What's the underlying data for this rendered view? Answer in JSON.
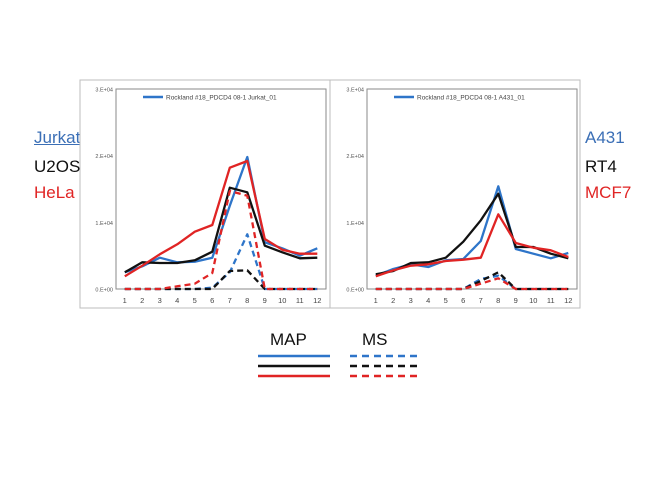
{
  "cell_lines_left": [
    {
      "name": "Jurkat",
      "color": "#3B6FB6",
      "underline": true
    },
    {
      "name": "U2OS",
      "color": "#111111",
      "underline": false
    },
    {
      "name": "HeLa",
      "color": "#E02424",
      "underline": false
    }
  ],
  "cell_lines_right": [
    {
      "name": "A431",
      "color": "#3B6FB6"
    },
    {
      "name": "RT4",
      "color": "#111111"
    },
    {
      "name": "MCF7",
      "color": "#E02424"
    }
  ],
  "legend": {
    "map_label": "MAP",
    "ms_label": "MS"
  },
  "colors": {
    "blue": "#2E75C9",
    "black": "#111111",
    "red": "#E02424"
  },
  "chart_data": [
    {
      "type": "line",
      "legend_entry": "Rockland #18_PDCD4 08-1 Jurkat_01",
      "legend_placement": "top",
      "x": [
        1,
        2,
        3,
        4,
        5,
        6,
        7,
        8,
        9,
        10,
        11,
        12
      ],
      "ylim": [
        0,
        30000
      ],
      "ytick_labels": [
        "0.E+00",
        "1.E+04",
        "2.E+04",
        "3.E+04"
      ],
      "ytick_values": [
        0,
        10000,
        20000,
        30000
      ],
      "series": [
        {
          "name": "Jurkat MAP",
          "color": "blue",
          "dashed": false,
          "values": [
            2500,
            3400,
            4700,
            4000,
            4100,
            4700,
            12500,
            19800,
            7000,
            6100,
            5000,
            6100
          ]
        },
        {
          "name": "U2OS MAP",
          "color": "black",
          "dashed": false,
          "values": [
            2500,
            4000,
            3900,
            3900,
            4300,
            5600,
            15200,
            14500,
            6500,
            5500,
            4600,
            4700
          ]
        },
        {
          "name": "HeLa MAP",
          "color": "red",
          "dashed": false,
          "values": [
            1900,
            3500,
            5200,
            6700,
            8600,
            9600,
            18200,
            19200,
            7500,
            5900,
            5300,
            5300
          ]
        },
        {
          "name": "Jurkat MS",
          "color": "blue",
          "dashed": true,
          "values": [
            0,
            0,
            0,
            0,
            0,
            200,
            2500,
            8200,
            0,
            0,
            0,
            0
          ]
        },
        {
          "name": "U2OS MS",
          "color": "black",
          "dashed": true,
          "values": [
            0,
            0,
            0,
            0,
            0,
            0,
            2700,
            2800,
            0,
            0,
            0,
            0
          ]
        },
        {
          "name": "HeLa MS",
          "color": "red",
          "dashed": true,
          "values": [
            0,
            0,
            0,
            400,
            800,
            2400,
            14700,
            14000,
            0,
            0,
            0,
            0
          ]
        }
      ]
    },
    {
      "type": "line",
      "legend_entry": "Rockland #18_PDCD4 08-1 A431_01",
      "legend_placement": "top",
      "x": [
        1,
        2,
        3,
        4,
        5,
        6,
        7,
        8,
        9,
        10,
        11,
        12
      ],
      "ylim": [
        0,
        30000
      ],
      "ytick_labels": [
        "0.E+00",
        "1.E+04",
        "2.E+04",
        "3.E+04"
      ],
      "ytick_values": [
        0,
        10000,
        20000,
        30000
      ],
      "series": [
        {
          "name": "A431 MAP",
          "color": "blue",
          "dashed": false,
          "values": [
            2000,
            3000,
            3700,
            3300,
            4300,
            4500,
            7200,
            15400,
            6000,
            5300,
            4600,
            5400
          ]
        },
        {
          "name": "RT4 MAP",
          "color": "black",
          "dashed": false,
          "values": [
            2200,
            2700,
            3900,
            4000,
            4700,
            7100,
            10300,
            14300,
            6300,
            6300,
            5300,
            4600
          ]
        },
        {
          "name": "MCF7 MAP",
          "color": "red",
          "dashed": false,
          "values": [
            1900,
            2800,
            3500,
            3700,
            4200,
            4400,
            4700,
            11200,
            6900,
            6200,
            5800,
            4800
          ]
        },
        {
          "name": "A431 MS",
          "color": "blue",
          "dashed": true,
          "values": [
            0,
            0,
            0,
            0,
            0,
            0,
            1500,
            2000,
            0,
            0,
            0,
            0
          ]
        },
        {
          "name": "RT4 MS",
          "color": "black",
          "dashed": true,
          "values": [
            0,
            0,
            0,
            0,
            0,
            0,
            1200,
            2500,
            0,
            0,
            0,
            0
          ]
        },
        {
          "name": "MCF7 MS",
          "color": "red",
          "dashed": true,
          "values": [
            0,
            0,
            0,
            0,
            0,
            0,
            800,
            1600,
            0,
            0,
            0,
            0
          ]
        }
      ]
    }
  ]
}
